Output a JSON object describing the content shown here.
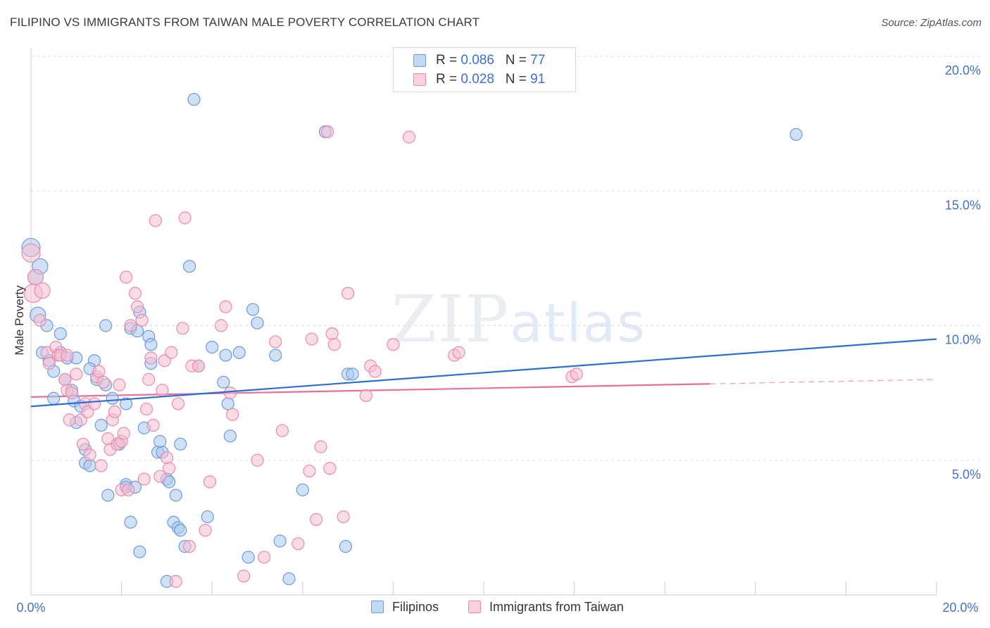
{
  "title": "FILIPINO VS IMMIGRANTS FROM TAIWAN MALE POVERTY CORRELATION CHART",
  "source": "Source: ZipAtlas.com",
  "watermark": {
    "zip": "ZIP",
    "atlas": "atlas"
  },
  "legend": {
    "rows": [
      {
        "r_label": "R =",
        "r_value": "0.086",
        "n_label": "N =",
        "n_value": "77"
      },
      {
        "r_label": "R =",
        "r_value": "0.028",
        "n_label": "N =",
        "n_value": "91"
      }
    ]
  },
  "bottom_legend": [
    "Filipinos",
    "Immigrants from Taiwan"
  ],
  "colors": {
    "blue_fill": "#a9c8f0",
    "blue_stroke": "#6b9be0",
    "blue_line": "#2d6fd0",
    "pink_fill": "#f6bfd0",
    "pink_stroke": "#ec8aab",
    "pink_line": "#e8709a",
    "grid": "#dddddd",
    "tick_label": "#4472c4"
  },
  "chart_data": {
    "type": "scatter",
    "title": "FILIPINO VS IMMIGRANTS FROM TAIWAN MALE POVERTY CORRELATION CHART",
    "xlabel": "",
    "ylabel": "Male Poverty",
    "xlim": [
      0,
      20
    ],
    "ylim": [
      0,
      20
    ],
    "x_tick_labels": [
      "0.0%",
      "20.0%"
    ],
    "y_ticks": [
      5,
      10,
      15,
      20
    ],
    "y_tick_labels": [
      "5.0%",
      "10.0%",
      "15.0%",
      "20.0%"
    ],
    "grid": true,
    "legend_position": "top-center",
    "series": [
      {
        "name": "Filipinos",
        "color": "#a9c8f0",
        "trend": {
          "x": [
            0,
            20
          ],
          "y": [
            7.0,
            9.5
          ]
        },
        "points": [
          [
            0.0,
            12.9
          ],
          [
            0.1,
            11.8
          ],
          [
            0.2,
            12.2
          ],
          [
            0.15,
            10.4
          ],
          [
            0.35,
            10.0
          ],
          [
            0.25,
            9.0
          ],
          [
            0.4,
            8.7
          ],
          [
            0.5,
            8.3
          ],
          [
            0.65,
            9.0
          ],
          [
            0.65,
            9.7
          ],
          [
            0.75,
            8.0
          ],
          [
            0.8,
            8.8
          ],
          [
            0.9,
            7.6
          ],
          [
            0.95,
            7.2
          ],
          [
            0.5,
            7.3
          ],
          [
            1.1,
            7.0
          ],
          [
            1.0,
            6.4
          ],
          [
            1.4,
            8.7
          ],
          [
            1.3,
            8.4
          ],
          [
            1.45,
            8.0
          ],
          [
            1.65,
            7.8
          ],
          [
            1.8,
            7.3
          ],
          [
            1.65,
            10.0
          ],
          [
            1.55,
            6.3
          ],
          [
            1.2,
            5.4
          ],
          [
            1.2,
            4.9
          ],
          [
            1.3,
            4.8
          ],
          [
            1.7,
            3.7
          ],
          [
            1.95,
            5.6
          ],
          [
            2.1,
            4.1
          ],
          [
            2.1,
            4.0
          ],
          [
            2.1,
            7.1
          ],
          [
            2.2,
            2.7
          ],
          [
            2.2,
            9.9
          ],
          [
            2.35,
            9.8
          ],
          [
            2.4,
            10.5
          ],
          [
            2.5,
            6.2
          ],
          [
            2.6,
            9.6
          ],
          [
            2.65,
            9.3
          ],
          [
            2.65,
            8.6
          ],
          [
            2.4,
            1.6
          ],
          [
            2.8,
            5.3
          ],
          [
            2.9,
            5.3
          ],
          [
            2.85,
            5.7
          ],
          [
            3.0,
            4.3
          ],
          [
            3.05,
            4.2
          ],
          [
            3.15,
            2.7
          ],
          [
            3.2,
            3.7
          ],
          [
            3.25,
            2.5
          ],
          [
            3.3,
            5.6
          ],
          [
            3.3,
            2.4
          ],
          [
            3.4,
            1.8
          ],
          [
            3.5,
            12.2
          ],
          [
            3.6,
            18.4
          ],
          [
            3.7,
            8.5
          ],
          [
            3.9,
            2.9
          ],
          [
            4.0,
            9.2
          ],
          [
            4.25,
            7.9
          ],
          [
            4.35,
            7.1
          ],
          [
            4.4,
            5.9
          ],
          [
            4.3,
            8.9
          ],
          [
            4.6,
            9.0
          ],
          [
            4.9,
            10.6
          ],
          [
            5.0,
            10.1
          ],
          [
            4.8,
            1.4
          ],
          [
            5.4,
            8.9
          ],
          [
            5.5,
            2.0
          ],
          [
            5.7,
            0.6
          ],
          [
            6.0,
            3.9
          ],
          [
            6.5,
            17.2
          ],
          [
            7.0,
            8.2
          ],
          [
            7.1,
            8.2
          ],
          [
            6.95,
            1.8
          ],
          [
            3.0,
            0.5
          ],
          [
            16.9,
            17.1
          ],
          [
            2.3,
            4.0
          ],
          [
            1.0,
            8.8
          ]
        ]
      },
      {
        "name": "Immigrants from Taiwan",
        "color": "#f6bfd0",
        "trend": {
          "x": [
            0,
            20
          ],
          "y": [
            7.35,
            8.0
          ]
        },
        "points": [
          [
            0.0,
            12.7
          ],
          [
            0.1,
            11.8
          ],
          [
            0.05,
            11.2
          ],
          [
            0.25,
            11.3
          ],
          [
            0.2,
            10.2
          ],
          [
            0.35,
            9.0
          ],
          [
            0.4,
            8.6
          ],
          [
            0.55,
            9.2
          ],
          [
            0.6,
            8.9
          ],
          [
            0.65,
            8.9
          ],
          [
            0.75,
            8.0
          ],
          [
            0.8,
            8.9
          ],
          [
            0.8,
            7.6
          ],
          [
            0.9,
            7.5
          ],
          [
            0.85,
            6.5
          ],
          [
            1.0,
            8.2
          ],
          [
            1.1,
            6.5
          ],
          [
            1.2,
            7.1
          ],
          [
            1.15,
            5.6
          ],
          [
            1.3,
            5.2
          ],
          [
            1.25,
            6.8
          ],
          [
            1.4,
            7.1
          ],
          [
            1.45,
            8.1
          ],
          [
            1.5,
            8.3
          ],
          [
            1.55,
            4.8
          ],
          [
            1.6,
            7.9
          ],
          [
            1.7,
            5.8
          ],
          [
            1.75,
            5.4
          ],
          [
            1.8,
            6.5
          ],
          [
            1.85,
            6.8
          ],
          [
            1.9,
            5.6
          ],
          [
            1.95,
            7.8
          ],
          [
            2.0,
            5.7
          ],
          [
            2.0,
            3.9
          ],
          [
            2.05,
            6.0
          ],
          [
            2.1,
            11.8
          ],
          [
            2.15,
            3.9
          ],
          [
            2.2,
            10.0
          ],
          [
            2.3,
            11.2
          ],
          [
            2.35,
            10.7
          ],
          [
            2.45,
            10.2
          ],
          [
            2.5,
            4.3
          ],
          [
            2.55,
            6.9
          ],
          [
            2.6,
            8.0
          ],
          [
            2.65,
            8.8
          ],
          [
            2.7,
            6.3
          ],
          [
            2.75,
            13.9
          ],
          [
            2.85,
            4.4
          ],
          [
            2.9,
            7.6
          ],
          [
            2.95,
            8.7
          ],
          [
            3.0,
            5.1
          ],
          [
            3.05,
            4.7
          ],
          [
            3.1,
            9.0
          ],
          [
            3.2,
            0.5
          ],
          [
            3.25,
            7.1
          ],
          [
            3.35,
            9.9
          ],
          [
            3.4,
            14.0
          ],
          [
            3.5,
            1.8
          ],
          [
            3.55,
            8.5
          ],
          [
            3.7,
            8.5
          ],
          [
            3.85,
            2.4
          ],
          [
            3.95,
            4.2
          ],
          [
            4.2,
            10.0
          ],
          [
            4.3,
            10.7
          ],
          [
            4.4,
            7.5
          ],
          [
            4.45,
            6.7
          ],
          [
            4.7,
            0.7
          ],
          [
            5.0,
            5.0
          ],
          [
            5.15,
            1.4
          ],
          [
            5.4,
            9.4
          ],
          [
            5.55,
            6.1
          ],
          [
            5.9,
            1.9
          ],
          [
            6.15,
            4.6
          ],
          [
            6.2,
            9.5
          ],
          [
            6.3,
            2.8
          ],
          [
            6.4,
            5.5
          ],
          [
            6.55,
            17.2
          ],
          [
            6.6,
            4.7
          ],
          [
            6.65,
            9.7
          ],
          [
            6.7,
            9.3
          ],
          [
            6.9,
            2.9
          ],
          [
            7.0,
            11.2
          ],
          [
            7.4,
            7.4
          ],
          [
            7.5,
            8.5
          ],
          [
            7.6,
            8.3
          ],
          [
            8.0,
            9.3
          ],
          [
            8.35,
            17.0
          ],
          [
            9.35,
            8.9
          ],
          [
            9.45,
            9.0
          ],
          [
            11.95,
            8.1
          ],
          [
            12.05,
            8.2
          ]
        ]
      }
    ]
  }
}
